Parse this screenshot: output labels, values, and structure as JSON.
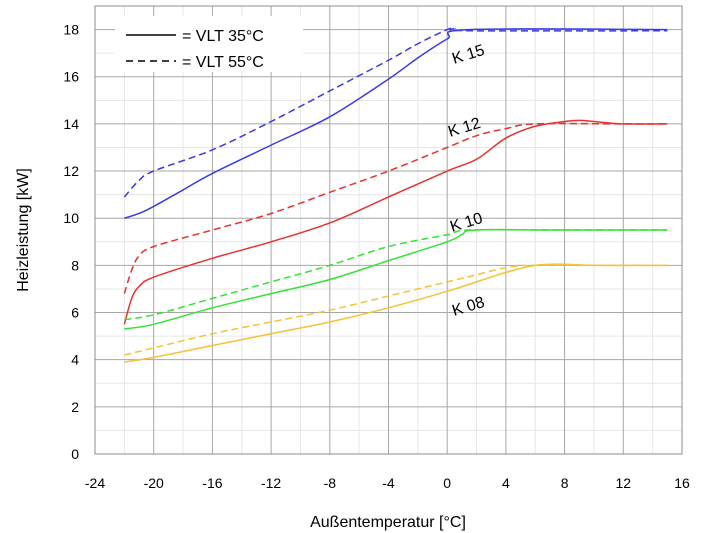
{
  "chart_data": {
    "type": "line",
    "xlabel": "Außentemperatur [°C]",
    "ylabel": "Heizleistung [kW]",
    "xlim": [
      -24,
      16
    ],
    "ylim": [
      0,
      19
    ],
    "xticks": [
      -24,
      -20,
      -16,
      -12,
      -8,
      -4,
      0,
      4,
      8,
      12,
      16
    ],
    "yticks": [
      0,
      2,
      4,
      6,
      8,
      10,
      12,
      14,
      16,
      18
    ],
    "grid": true,
    "legend": {
      "position": "top-left",
      "entries": [
        {
          "style": "solid",
          "label": "= VLT 35°C"
        },
        {
          "style": "dashed",
          "label": "= VLT 55°C"
        }
      ]
    },
    "models": [
      {
        "label": "K 15",
        "color": "#3a3ae6",
        "solid": [
          [
            -22,
            10.0
          ],
          [
            -21,
            10.2
          ],
          [
            -20,
            10.5
          ],
          [
            -18,
            11.2
          ],
          [
            -16,
            11.9
          ],
          [
            -12,
            13.1
          ],
          [
            -8,
            14.3
          ],
          [
            -4,
            15.9
          ],
          [
            -2,
            16.8
          ],
          [
            0,
            17.6
          ],
          [
            1.5,
            18.0
          ],
          [
            15,
            18.0
          ]
        ],
        "dashed": [
          [
            -22,
            10.9
          ],
          [
            -21,
            11.6
          ],
          [
            -20,
            12.0
          ],
          [
            -16,
            12.9
          ],
          [
            -12,
            14.1
          ],
          [
            -8,
            15.4
          ],
          [
            -4,
            16.7
          ],
          [
            -2,
            17.4
          ],
          [
            0,
            18.0
          ],
          [
            0.5,
            18.05
          ],
          [
            1.5,
            17.95
          ],
          [
            15,
            17.95
          ]
        ]
      },
      {
        "label": "K 12",
        "color": "#e8322e",
        "solid": [
          [
            -22,
            5.5
          ],
          [
            -21.5,
            6.6
          ],
          [
            -21,
            7.1
          ],
          [
            -20,
            7.5
          ],
          [
            -16,
            8.3
          ],
          [
            -12,
            9.0
          ],
          [
            -8,
            9.8
          ],
          [
            -4,
            10.9
          ],
          [
            0,
            12.0
          ],
          [
            2,
            12.5
          ],
          [
            4,
            13.4
          ],
          [
            6,
            13.9
          ],
          [
            8,
            14.1
          ],
          [
            9,
            14.15
          ],
          [
            10,
            14.1
          ],
          [
            12,
            14.0
          ],
          [
            15,
            14.0
          ]
        ],
        "dashed": [
          [
            -22,
            6.8
          ],
          [
            -21.5,
            7.8
          ],
          [
            -21,
            8.4
          ],
          [
            -20,
            8.8
          ],
          [
            -16,
            9.5
          ],
          [
            -12,
            10.2
          ],
          [
            -8,
            11.1
          ],
          [
            -4,
            12.0
          ],
          [
            0,
            13.0
          ],
          [
            2,
            13.5
          ],
          [
            4,
            13.8
          ],
          [
            6,
            14.0
          ],
          [
            12,
            14.0
          ],
          [
            15,
            14.0
          ]
        ]
      },
      {
        "label": "K 10",
        "color": "#35e235",
        "solid": [
          [
            -22,
            5.3
          ],
          [
            -20,
            5.5
          ],
          [
            -16,
            6.2
          ],
          [
            -12,
            6.8
          ],
          [
            -8,
            7.4
          ],
          [
            -4,
            8.2
          ],
          [
            0,
            9.0
          ],
          [
            1,
            9.3
          ],
          [
            2,
            9.5
          ],
          [
            8,
            9.5
          ],
          [
            15,
            9.5
          ]
        ],
        "dashed": [
          [
            -22,
            5.7
          ],
          [
            -20,
            5.9
          ],
          [
            -16,
            6.6
          ],
          [
            -12,
            7.3
          ],
          [
            -8,
            8.0
          ],
          [
            -4,
            8.8
          ],
          [
            0,
            9.3
          ],
          [
            1.5,
            9.5
          ],
          [
            8,
            9.5
          ],
          [
            15,
            9.5
          ]
        ]
      },
      {
        "label": "K 08",
        "color": "#f5c236",
        "solid": [
          [
            -22,
            3.9
          ],
          [
            -20,
            4.1
          ],
          [
            -16,
            4.6
          ],
          [
            -12,
            5.1
          ],
          [
            -8,
            5.6
          ],
          [
            -4,
            6.2
          ],
          [
            0,
            6.9
          ],
          [
            2,
            7.3
          ],
          [
            4,
            7.7
          ],
          [
            6,
            8.0
          ],
          [
            8,
            8.05
          ],
          [
            10,
            8.0
          ],
          [
            15,
            8.0
          ]
        ],
        "dashed": [
          [
            -22,
            4.2
          ],
          [
            -20,
            4.5
          ],
          [
            -16,
            5.1
          ],
          [
            -12,
            5.6
          ],
          [
            -8,
            6.1
          ],
          [
            -4,
            6.7
          ],
          [
            0,
            7.3
          ],
          [
            2,
            7.6
          ],
          [
            4,
            7.9
          ],
          [
            6,
            8.0
          ],
          [
            15,
            8.0
          ]
        ]
      }
    ]
  }
}
